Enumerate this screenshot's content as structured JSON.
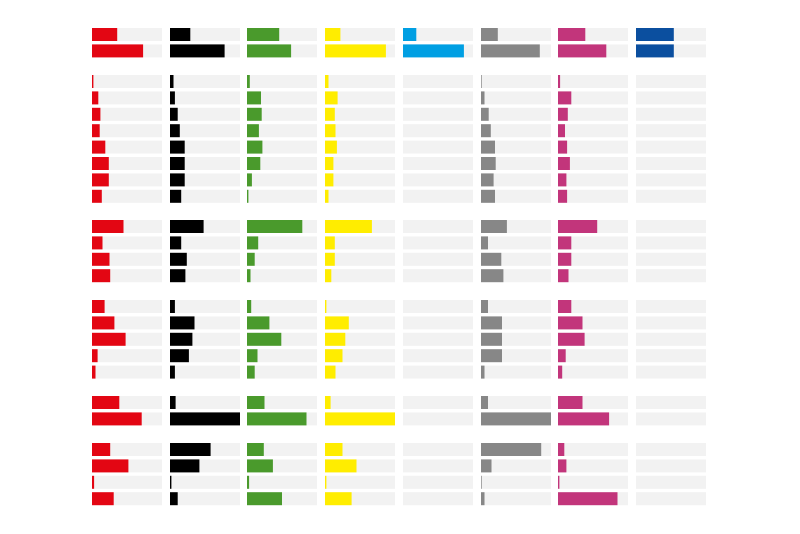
{
  "chart_data": {
    "type": "bar",
    "orientation": "horizontal",
    "layout": "small-multiples",
    "value_range": [
      0,
      100
    ],
    "series": [
      {
        "color": "#e30613"
      },
      {
        "color": "#000000"
      },
      {
        "color": "#4a9a2c"
      },
      {
        "color": "#ffed00"
      },
      {
        "color": "#009fe3"
      },
      {
        "color": "#878787"
      },
      {
        "color": "#c2357b"
      },
      {
        "color": "#0b4f9f"
      }
    ],
    "groups": [
      {
        "rows": [
          [
            36,
            29,
            46,
            22,
            19,
            24,
            39,
            54
          ],
          [
            73,
            78,
            63,
            87,
            87,
            84,
            69,
            54
          ]
        ]
      },
      {
        "rows": [
          [
            2,
            5,
            4,
            5,
            0,
            1,
            3,
            0
          ],
          [
            9,
            7,
            20,
            18,
            0,
            5,
            19,
            0
          ],
          [
            12,
            11,
            21,
            14,
            0,
            11,
            14,
            0
          ],
          [
            11,
            14,
            17,
            15,
            0,
            14,
            10,
            0
          ],
          [
            19,
            21,
            22,
            17,
            0,
            20,
            13,
            0
          ],
          [
            24,
            21,
            19,
            12,
            0,
            21,
            17,
            0
          ],
          [
            24,
            21,
            7,
            12,
            0,
            18,
            12,
            0
          ],
          [
            14,
            16,
            2,
            5,
            0,
            20,
            13,
            0
          ]
        ]
      },
      {
        "rows": [
          [
            45,
            48,
            79,
            67,
            0,
            37,
            56,
            0
          ],
          [
            15,
            16,
            16,
            14,
            0,
            10,
            19,
            0
          ],
          [
            25,
            24,
            11,
            14,
            0,
            29,
            19,
            0
          ],
          [
            26,
            22,
            5,
            9,
            0,
            32,
            15,
            0
          ]
        ]
      },
      {
        "rows": [
          [
            18,
            7,
            6,
            2,
            0,
            10,
            19,
            0
          ],
          [
            32,
            35,
            32,
            34,
            0,
            30,
            35,
            0
          ],
          [
            48,
            32,
            49,
            29,
            0,
            30,
            38,
            0
          ],
          [
            8,
            27,
            15,
            25,
            0,
            30,
            11,
            0
          ],
          [
            5,
            7,
            11,
            15,
            0,
            5,
            6,
            0
          ]
        ]
      },
      {
        "rows": [
          [
            39,
            8,
            25,
            8,
            0,
            10,
            35,
            0
          ],
          [
            71,
            100,
            85,
            100,
            0,
            100,
            73,
            0
          ]
        ]
      },
      {
        "rows": [
          [
            26,
            58,
            24,
            25,
            0,
            86,
            9,
            0
          ],
          [
            52,
            42,
            37,
            45,
            0,
            15,
            12,
            0
          ],
          [
            3,
            2,
            3,
            2,
            0,
            1,
            2,
            0
          ],
          [
            31,
            11,
            50,
            38,
            0,
            5,
            85,
            0
          ]
        ]
      }
    ]
  }
}
